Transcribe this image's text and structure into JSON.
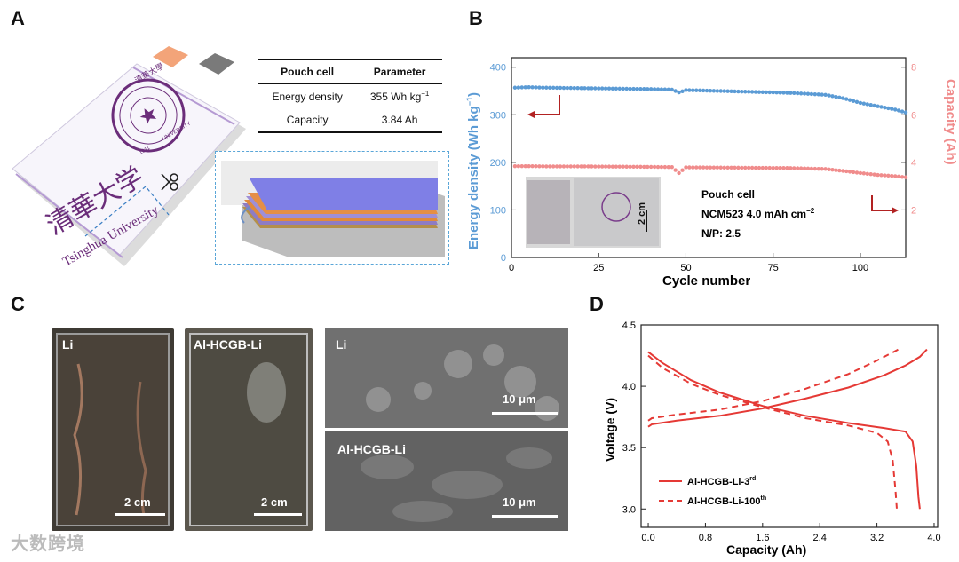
{
  "panels": {
    "a": "A",
    "b": "B",
    "c": "C",
    "d": "D"
  },
  "pouch": {
    "table_headers": [
      "Pouch cell",
      "Parameter"
    ],
    "rows": [
      {
        "name": "Energy density",
        "value": "355 Wh kg",
        "sup": "−1"
      },
      {
        "name": "Capacity",
        "value": "3.84 Ah"
      }
    ],
    "logo_text_top": "清華大學",
    "logo_text_year": "1911",
    "logo_text_univ": "UNIVERSITY",
    "brand_cn": "清華大学",
    "brand_en": "Tsinghua University"
  },
  "chart_b": {
    "type": "scatter",
    "x_label": "Cycle number",
    "y_left_label": "Energy density (Wh kg",
    "y_left_label_sup": "−1",
    "y_left_label_end": ")",
    "y_right_label": "Capacity (Ah)",
    "x_ticks": [
      "0",
      "25",
      "50",
      "75",
      "100"
    ],
    "y_left_ticks": [
      "0",
      "100",
      "200",
      "300",
      "400"
    ],
    "y_right_ticks": [
      "2",
      "4",
      "6",
      "8"
    ],
    "annot_line1": "Pouch cell",
    "annot_line2": "NCM523 4.0 mAh cm",
    "annot_line2_sup": "−2",
    "annot_line3": "N/P: 2.5",
    "scale_label": "2 cm",
    "colors": {
      "energy": "#5b9bd5",
      "capacity": "#f08c8c",
      "arrow": "#b22222"
    }
  },
  "chart_data": [
    {
      "type": "scatter",
      "title": "",
      "xlabel": "Cycle number",
      "ylabel": "Energy density (Wh kg−1)",
      "y2label": "Capacity (Ah)",
      "xlim": [
        0,
        113
      ],
      "ylim": [
        0,
        420
      ],
      "y2lim": [
        0,
        8.4
      ],
      "series": [
        {
          "name": "Energy density",
          "axis": "left",
          "x": [
            1,
            5,
            10,
            20,
            30,
            40,
            46,
            48,
            50,
            60,
            70,
            80,
            90,
            95,
            100,
            105,
            110,
            113
          ],
          "y": [
            357,
            358,
            357,
            356,
            355,
            354,
            353,
            347,
            352,
            350,
            348,
            346,
            342,
            335,
            325,
            318,
            311,
            305
          ]
        },
        {
          "name": "Capacity",
          "axis": "right",
          "x": [
            1,
            5,
            10,
            20,
            30,
            40,
            46,
            48,
            50,
            60,
            70,
            80,
            90,
            95,
            100,
            105,
            110,
            113
          ],
          "y": [
            3.84,
            3.84,
            3.83,
            3.83,
            3.82,
            3.81,
            3.8,
            3.55,
            3.79,
            3.78,
            3.77,
            3.76,
            3.72,
            3.64,
            3.55,
            3.47,
            3.42,
            3.37
          ]
        }
      ]
    },
    {
      "type": "line",
      "title": "",
      "xlabel": "Capacity (Ah)",
      "ylabel": "Voltage (V)",
      "xlim": [
        -0.1,
        4.05
      ],
      "ylim": [
        2.85,
        4.5
      ],
      "series": [
        {
          "name": "Al-HCGB-Li-3rd",
          "style": "solid",
          "charge": {
            "x": [
              0,
              0.05,
              0.4,
              1.0,
              1.6,
              2.2,
              2.8,
              3.3,
              3.6,
              3.8,
              3.9
            ],
            "y": [
              3.67,
              3.69,
              3.72,
              3.76,
              3.82,
              3.9,
              3.99,
              4.09,
              4.17,
              4.24,
              4.3
            ]
          },
          "discharge": {
            "x": [
              0,
              0.2,
              0.6,
              1.0,
              1.6,
              2.2,
              2.8,
              3.3,
              3.6,
              3.7,
              3.75,
              3.78,
              3.8
            ],
            "y": [
              4.28,
              4.19,
              4.05,
              3.95,
              3.84,
              3.76,
              3.7,
              3.66,
              3.63,
              3.55,
              3.35,
              3.1,
              3.0
            ]
          }
        },
        {
          "name": "Al-HCGB-Li-100th",
          "style": "dashed",
          "charge": {
            "x": [
              0,
              0.05,
              0.4,
              1.0,
              1.6,
              2.2,
              2.8,
              3.2,
              3.4,
              3.5
            ],
            "y": [
              3.72,
              3.74,
              3.77,
              3.81,
              3.88,
              3.98,
              4.1,
              4.21,
              4.27,
              4.3
            ]
          },
          "discharge": {
            "x": [
              0,
              0.2,
              0.6,
              1.0,
              1.6,
              2.2,
              2.8,
              3.2,
              3.35,
              3.42,
              3.46,
              3.48
            ],
            "y": [
              4.25,
              4.15,
              4.02,
              3.93,
              3.83,
              3.74,
              3.68,
              3.62,
              3.55,
              3.4,
              3.15,
              2.99
            ]
          }
        }
      ]
    }
  ],
  "chart_d": {
    "x_label": "Capacity (Ah)",
    "y_label": "Voltage (V)",
    "x_ticks": [
      "0.0",
      "0.8",
      "1.6",
      "2.4",
      "3.2",
      "4.0"
    ],
    "y_ticks": [
      "3.0",
      "3.5",
      "4.0",
      "4.5"
    ],
    "legend_3rd": "Al-HCGB-Li-3",
    "legend_3rd_sup": "rd",
    "legend_100th": "Al-HCGB-Li-100",
    "legend_100th_sup": "th",
    "color": "#e53935"
  },
  "panel_c": {
    "photo1_label": "Li",
    "photo2_label": "Al-HCGB-Li",
    "photo_scale": "2 cm",
    "sem1_label": "Li",
    "sem2_label": "Al-HCGB-Li",
    "sem_scale": "10 μm"
  },
  "watermark": "大数跨境"
}
